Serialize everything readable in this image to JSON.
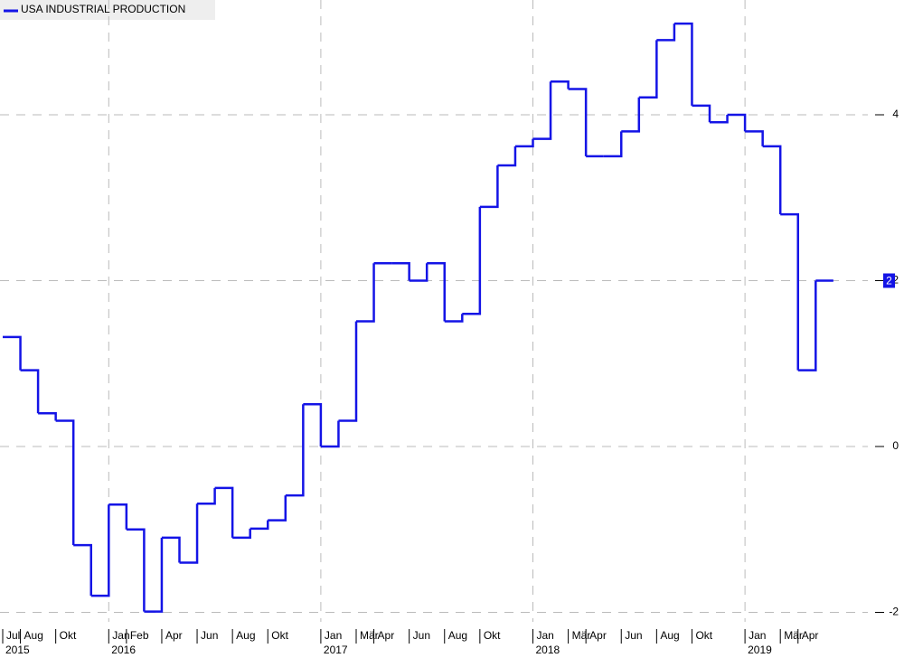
{
  "chart_data": {
    "type": "step-line",
    "x": [
      "2015-07",
      "2015-08",
      "2015-09",
      "2015-10",
      "2015-11",
      "2015-12",
      "2016-01",
      "2016-02",
      "2016-03",
      "2016-04",
      "2016-05",
      "2016-06",
      "2016-07",
      "2016-08",
      "2016-09",
      "2016-10",
      "2016-11",
      "2016-12",
      "2017-01",
      "2017-02",
      "2017-03",
      "2017-04",
      "2017-05",
      "2017-06",
      "2017-07",
      "2017-08",
      "2017-09",
      "2017-10",
      "2017-11",
      "2017-12",
      "2018-01",
      "2018-02",
      "2018-03",
      "2018-04",
      "2018-05",
      "2018-06",
      "2018-07",
      "2018-08",
      "2018-09",
      "2018-10",
      "2018-11",
      "2018-12",
      "2019-01",
      "2019-02",
      "2019-03",
      "2019-04",
      "2019-05"
    ],
    "series": [
      {
        "name": "USA INDUSTRIAL PRODUCTION",
        "color": "#1414e6",
        "values": [
          1.32,
          0.92,
          0.4,
          0.31,
          -1.19,
          -1.8,
          -0.7,
          -1.0,
          -1.99,
          -1.1,
          -1.4,
          -0.69,
          -0.5,
          -1.1,
          -0.99,
          -0.89,
          -0.59,
          0.51,
          0,
          0.31,
          1.51,
          2.21,
          2.21,
          2.0,
          2.21,
          1.51,
          1.6,
          2.89,
          3.39,
          3.62,
          3.71,
          4.4,
          4.31,
          3.5,
          3.5,
          3.8,
          4.21,
          4.9,
          5.1,
          4.11,
          3.91,
          4.0,
          3.8,
          3.62,
          2.8,
          0.92,
          2
        ]
      }
    ],
    "ylim": [
      -2,
      5.3
    ],
    "yticks": [
      -2,
      0,
      2,
      4
    ],
    "xticks": [
      {
        "value": "2015-07",
        "label": "Jul",
        "year": "2015"
      },
      {
        "value": "2015-08",
        "label": "Aug"
      },
      {
        "value": "2015-10",
        "label": "Okt"
      },
      {
        "value": "2016-01",
        "label": "Jan",
        "year": "2016"
      },
      {
        "value": "2016-02",
        "label": "Feb"
      },
      {
        "value": "2016-04",
        "label": "Apr"
      },
      {
        "value": "2016-06",
        "label": "Jun"
      },
      {
        "value": "2016-08",
        "label": "Aug"
      },
      {
        "value": "2016-10",
        "label": "Okt"
      },
      {
        "value": "2017-01",
        "label": "Jan",
        "year": "2017"
      },
      {
        "value": "2017-03",
        "label": "Mär"
      },
      {
        "value": "2017-04",
        "label": "Apr"
      },
      {
        "value": "2017-06",
        "label": "Jun"
      },
      {
        "value": "2017-08",
        "label": "Aug"
      },
      {
        "value": "2017-10",
        "label": "Okt"
      },
      {
        "value": "2018-01",
        "label": "Jan",
        "year": "2018"
      },
      {
        "value": "2018-03",
        "label": "Mär"
      },
      {
        "value": "2018-04",
        "label": "Apr"
      },
      {
        "value": "2018-06",
        "label": "Jun"
      },
      {
        "value": "2018-08",
        "label": "Aug"
      },
      {
        "value": "2018-10",
        "label": "Okt"
      },
      {
        "value": "2019-01",
        "label": "Jan",
        "year": "2019"
      },
      {
        "value": "2019-03",
        "label": "Mär"
      },
      {
        "value": "2019-04",
        "label": "Apr"
      }
    ],
    "grid": true
  }
}
